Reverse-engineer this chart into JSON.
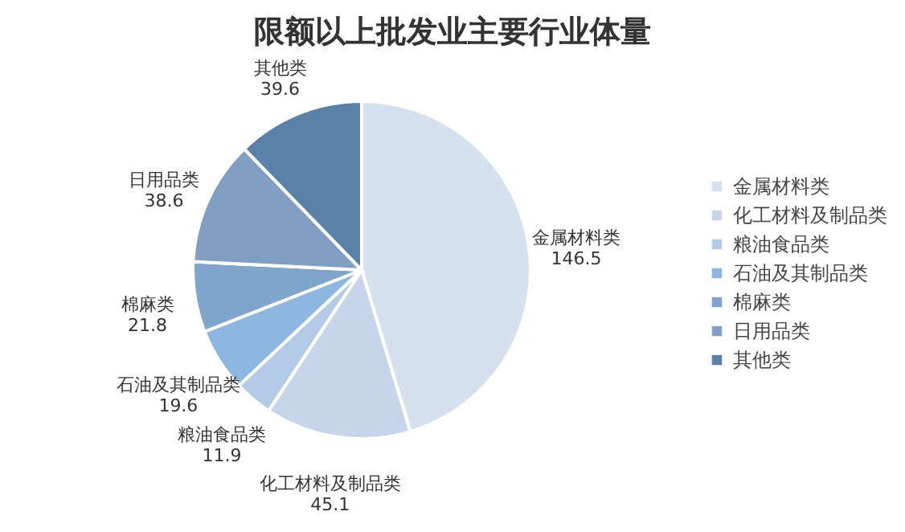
{
  "chart_data": {
    "type": "pie",
    "title": "限额以上批发业主要行业体量",
    "categories": [
      "金属材料类",
      "化工材料及制品类",
      "粮油食品类",
      "石油及其制品类",
      "棉麻类",
      "日用品类",
      "其他类"
    ],
    "values": [
      146.5,
      45.1,
      11.9,
      19.6,
      21.8,
      38.6,
      39.6
    ],
    "colors": [
      "#d6e1ef",
      "#c6d5e9",
      "#b3cbe6",
      "#8db6e0",
      "#7fa5cd",
      "#819fc2",
      "#5a81a8"
    ],
    "data_labels": true,
    "legend": "right"
  }
}
